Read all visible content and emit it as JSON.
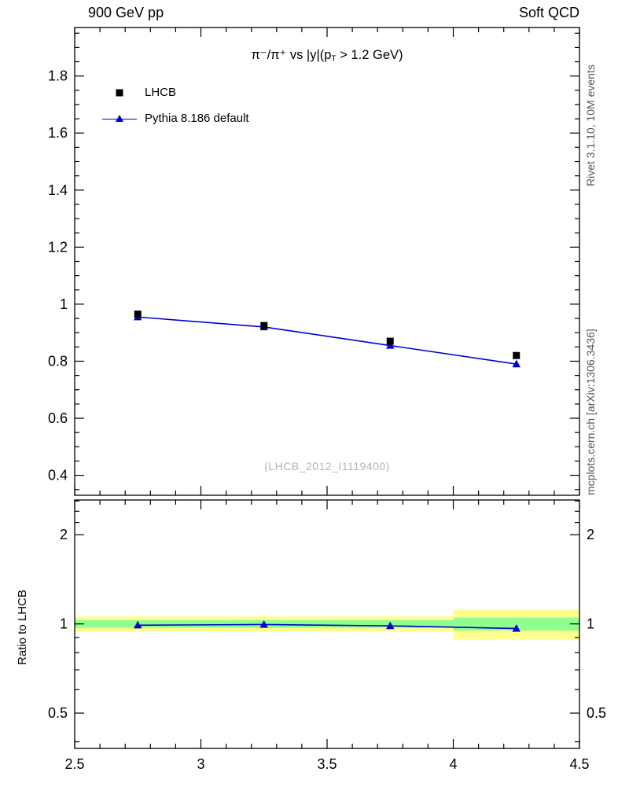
{
  "header": {
    "left_label": "900 GeV pp",
    "right_label": "Soft QCD"
  },
  "margin_notes": {
    "top_right": "Rivet 3.1.10,  10M events",
    "bottom_right": "mcplots.cern.ch [arXiv:1306.3436]"
  },
  "watermark": "(LHCB_2012_I1119400)",
  "title": {
    "plain": "π⁻/π⁺ vs |y| (pT > 1.2 GeV)",
    "parts": [
      "π⁻/π⁺ vs |y|(p",
      "T",
      " > 1.2 GeV)"
    ]
  },
  "axes": {
    "ratio_ylabel": "Ratio to LHCB"
  },
  "legend": [
    {
      "label": "LHCB",
      "marker": "square",
      "color": "#000000"
    },
    {
      "label": "Pythia 8.186 default",
      "marker": "triangle-line",
      "color": "#0000cc"
    }
  ],
  "colors": {
    "lhcb": "#000000",
    "pythia": "#0000cc",
    "band_outer": "#ffff8f",
    "band_inner": "#8fff8f",
    "frame": "#000000",
    "watermark": "#b5b5b5"
  },
  "chart_data": {
    "type": "line",
    "title": "π⁻/π⁺ vs |y| (pT > 1.2 GeV)",
    "x": [
      2.75,
      3.25,
      3.75,
      4.25
    ],
    "xlim": [
      2.5,
      4.5
    ],
    "x_major_ticks": [
      2.5,
      3,
      3.5,
      4,
      4.5
    ],
    "x_minor_step": 0.1,
    "main_panel": {
      "scale": "linear",
      "ylim": [
        0.33,
        1.97
      ],
      "y_major_ticks": [
        0.4,
        0.6,
        0.8,
        1,
        1.2,
        1.4,
        1.6,
        1.8
      ],
      "y_minor_step": 0.05,
      "series": [
        {
          "name": "LHCB",
          "marker": "square",
          "color": "#000000",
          "line": false,
          "values": [
            0.965,
            0.925,
            0.87,
            0.82
          ]
        },
        {
          "name": "Pythia 8.186 default",
          "marker": "triangle",
          "color": "#0000cc",
          "line": true,
          "values": [
            0.955,
            0.92,
            0.855,
            0.79
          ]
        }
      ]
    },
    "ratio_panel": {
      "scale": "log",
      "ylabel": "Ratio to LHCB",
      "ylim": [
        0.38,
        2.62
      ],
      "y_major_ticks": [
        0.5,
        1,
        2
      ],
      "y_minor_ticks": [
        0.4,
        0.6,
        0.7,
        0.8,
        0.9,
        2.2,
        2.4,
        2.6
      ],
      "series_name": "Pythia 8.186 default",
      "values": [
        0.99,
        0.995,
        0.985,
        0.965
      ],
      "band_colors": {
        "outer": "#ffff8f",
        "inner": "#8fff8f"
      },
      "bands": [
        {
          "x0": 2.5,
          "x1": 3.0,
          "outer": [
            0.94,
            1.06
          ],
          "inner": [
            0.97,
            1.03
          ]
        },
        {
          "x0": 3.0,
          "x1": 3.5,
          "outer": [
            0.94,
            1.06
          ],
          "inner": [
            0.97,
            1.03
          ]
        },
        {
          "x0": 3.5,
          "x1": 4.0,
          "outer": [
            0.94,
            1.06
          ],
          "inner": [
            0.97,
            1.03
          ]
        },
        {
          "x0": 4.0,
          "x1": 4.5,
          "outer": [
            0.885,
            1.115
          ],
          "inner": [
            0.95,
            1.05
          ]
        }
      ]
    }
  }
}
